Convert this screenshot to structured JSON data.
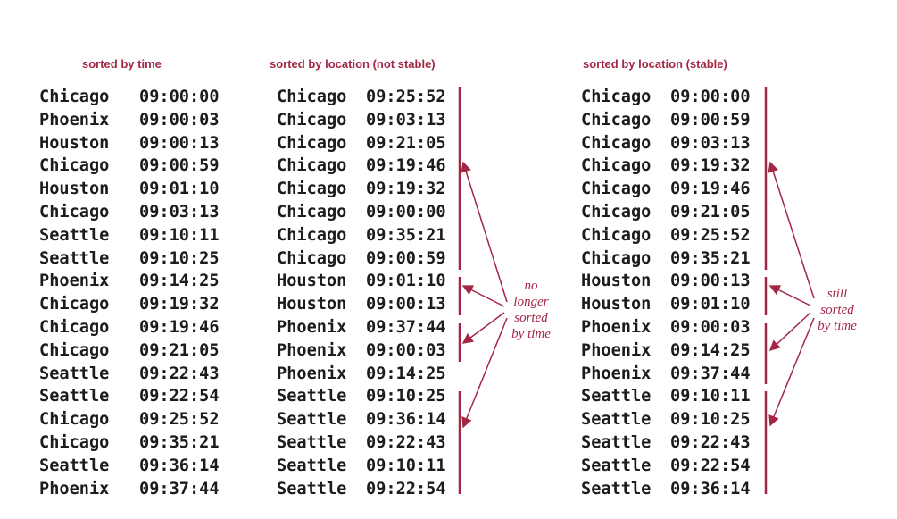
{
  "columns": [
    {
      "title": "sorted by time",
      "rows": [
        [
          "Chicago",
          "09:00:00"
        ],
        [
          "Phoenix",
          "09:00:03"
        ],
        [
          "Houston",
          "09:00:13"
        ],
        [
          "Chicago",
          "09:00:59"
        ],
        [
          "Houston",
          "09:01:10"
        ],
        [
          "Chicago",
          "09:03:13"
        ],
        [
          "Seattle",
          "09:10:11"
        ],
        [
          "Seattle",
          "09:10:25"
        ],
        [
          "Phoenix",
          "09:14:25"
        ],
        [
          "Chicago",
          "09:19:32"
        ],
        [
          "Chicago",
          "09:19:46"
        ],
        [
          "Chicago",
          "09:21:05"
        ],
        [
          "Seattle",
          "09:22:43"
        ],
        [
          "Seattle",
          "09:22:54"
        ],
        [
          "Chicago",
          "09:25:52"
        ],
        [
          "Chicago",
          "09:35:21"
        ],
        [
          "Seattle",
          "09:36:14"
        ],
        [
          "Phoenix",
          "09:37:44"
        ]
      ]
    },
    {
      "title": "sorted by location (not stable)",
      "rows": [
        [
          "Chicago",
          "09:25:52"
        ],
        [
          "Chicago",
          "09:03:13"
        ],
        [
          "Chicago",
          "09:21:05"
        ],
        [
          "Chicago",
          "09:19:46"
        ],
        [
          "Chicago",
          "09:19:32"
        ],
        [
          "Chicago",
          "09:00:00"
        ],
        [
          "Chicago",
          "09:35:21"
        ],
        [
          "Chicago",
          "09:00:59"
        ],
        [
          "Houston",
          "09:01:10"
        ],
        [
          "Houston",
          "09:00:13"
        ],
        [
          "Phoenix",
          "09:37:44"
        ],
        [
          "Phoenix",
          "09:00:03"
        ],
        [
          "Phoenix",
          "09:14:25"
        ],
        [
          "Seattle",
          "09:10:25"
        ],
        [
          "Seattle",
          "09:36:14"
        ],
        [
          "Seattle",
          "09:22:43"
        ],
        [
          "Seattle",
          "09:10:11"
        ],
        [
          "Seattle",
          "09:22:54"
        ]
      ]
    },
    {
      "title": "sorted by location (stable)",
      "rows": [
        [
          "Chicago",
          "09:00:00"
        ],
        [
          "Chicago",
          "09:00:59"
        ],
        [
          "Chicago",
          "09:03:13"
        ],
        [
          "Chicago",
          "09:19:32"
        ],
        [
          "Chicago",
          "09:19:46"
        ],
        [
          "Chicago",
          "09:21:05"
        ],
        [
          "Chicago",
          "09:25:52"
        ],
        [
          "Chicago",
          "09:35:21"
        ],
        [
          "Houston",
          "09:00:13"
        ],
        [
          "Houston",
          "09:01:10"
        ],
        [
          "Phoenix",
          "09:00:03"
        ],
        [
          "Phoenix",
          "09:14:25"
        ],
        [
          "Phoenix",
          "09:37:44"
        ],
        [
          "Seattle",
          "09:10:11"
        ],
        [
          "Seattle",
          "09:10:25"
        ],
        [
          "Seattle",
          "09:22:43"
        ],
        [
          "Seattle",
          "09:22:54"
        ],
        [
          "Seattle",
          "09:36:14"
        ]
      ]
    }
  ],
  "annotations": {
    "not_stable": [
      "no",
      "longer",
      "sorted",
      "by time"
    ],
    "stable": [
      "still",
      "sorted",
      "by time"
    ]
  },
  "colors": {
    "accent": "#a32745",
    "text": "#1c1c1c",
    "background": "#ffffff"
  }
}
